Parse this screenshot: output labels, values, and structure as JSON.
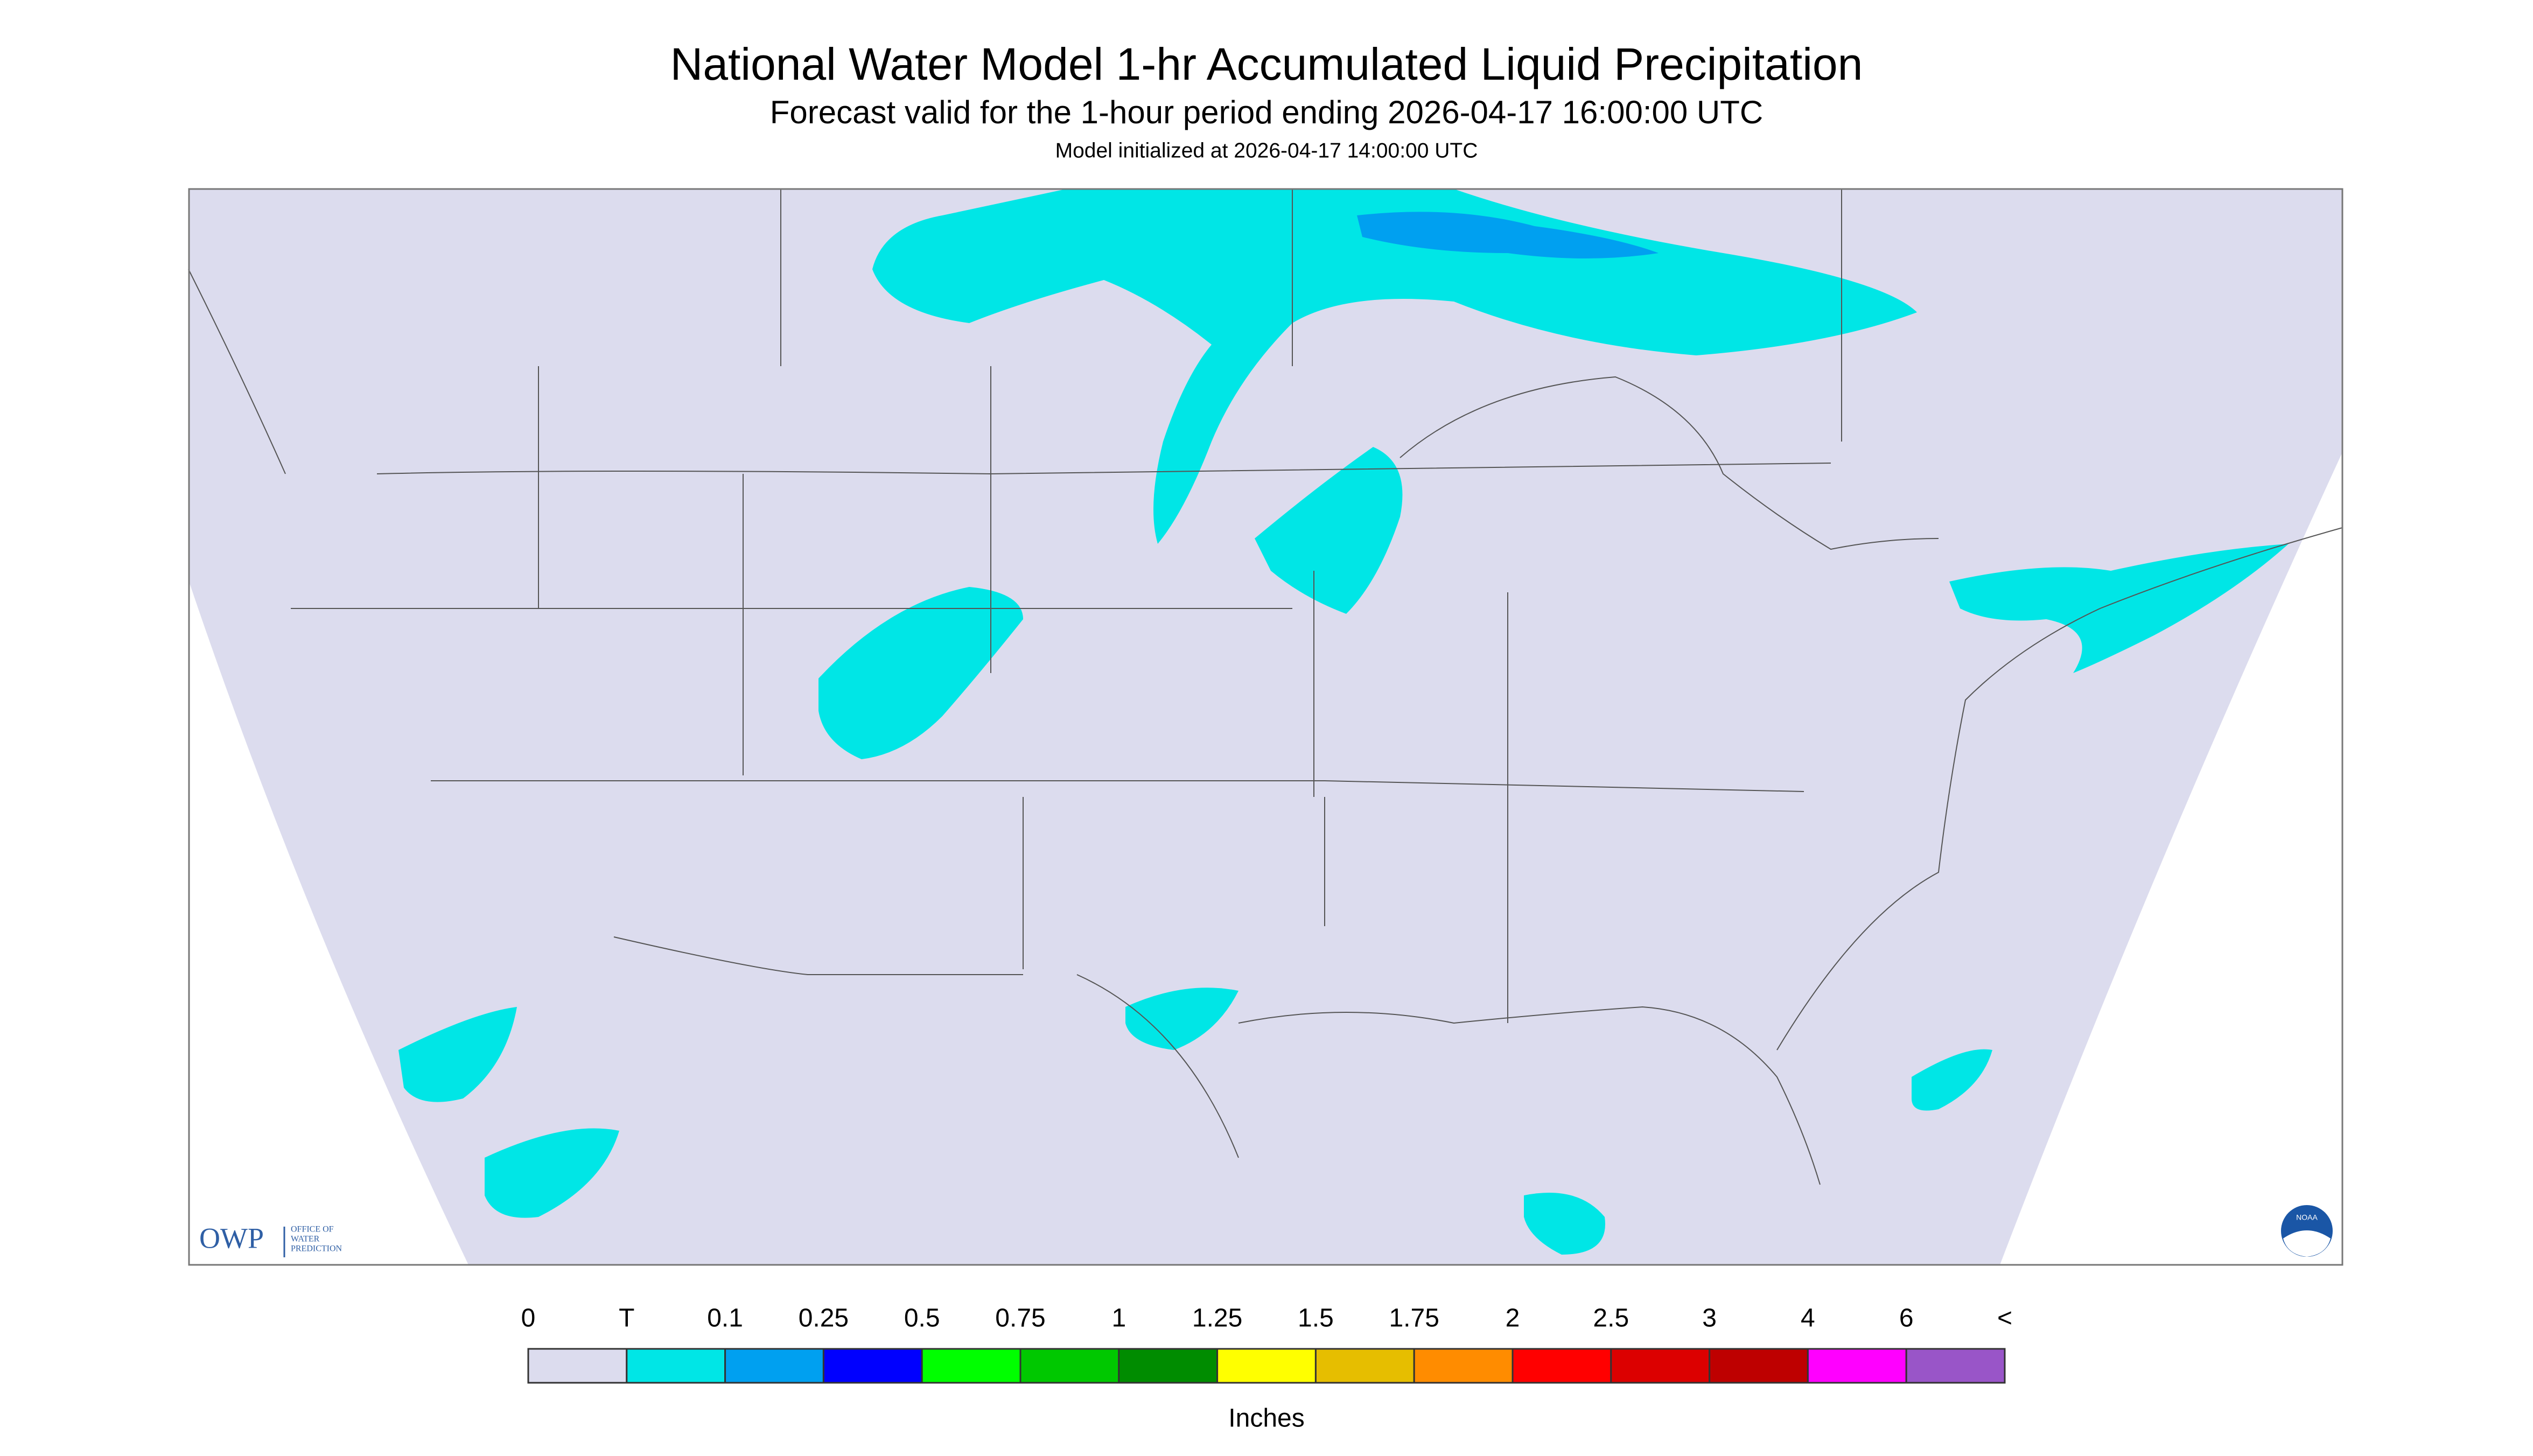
{
  "title": "National Water Model 1-hr Accumulated Liquid Precipitation",
  "subtitle": "Forecast valid for the 1-hour period ending 2026-04-17 16:00:00 UTC",
  "model_init": "Model initialized at 2026-04-17 14:00:00 UTC",
  "legend": {
    "labels": [
      "0",
      "T",
      "0.1",
      "0.25",
      "0.5",
      "0.75",
      "1",
      "1.25",
      "1.5",
      "1.75",
      "2",
      "2.5",
      "3",
      "4",
      "6",
      "<"
    ],
    "colors": [
      "#dcdcee",
      "#00e6e6",
      "#00a0f0",
      "#0000ff",
      "#00ff00",
      "#00c800",
      "#008c00",
      "#ffff00",
      "#e6be00",
      "#ff8c00",
      "#ff0000",
      "#dc0000",
      "#be0000",
      "#ff00ff",
      "#9955c8"
    ],
    "unit": "Inches"
  },
  "logos": {
    "owp": "OWP",
    "owp_office": [
      "OFFICE OF",
      "WATER",
      "PREDICTION"
    ],
    "noaa": "NOAA"
  }
}
